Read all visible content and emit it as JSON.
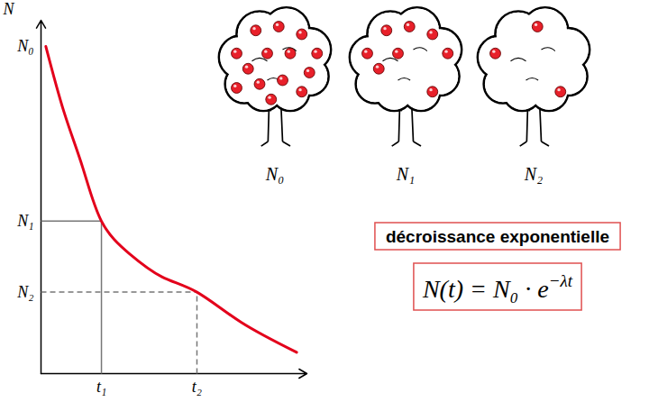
{
  "chart_data": {
    "type": "line",
    "ylabel": "N",
    "x": [
      0.08,
      0.38,
      0.69,
      1.0,
      1.46,
      2.0,
      2.58,
      3.31,
      4.23
    ],
    "values": [
      1.0,
      0.8,
      0.63,
      0.466,
      0.367,
      0.296,
      0.249,
      0.157,
      0.065
    ],
    "color": "#e3001b",
    "xlim": [
      0,
      4.4
    ],
    "ylim": [
      0,
      1.08
    ],
    "xticks": [
      {
        "value": 1.0,
        "label": "t₁"
      },
      {
        "value": 2.58,
        "label": "t₂"
      }
    ],
    "yticks": [
      {
        "value": 1.0,
        "label": "N₀"
      },
      {
        "value": 0.466,
        "label": "N₁"
      },
      {
        "value": 0.249,
        "label": "N₂"
      }
    ],
    "guides": [
      {
        "x": 1.0,
        "y": 0.466,
        "line_style": "solid"
      },
      {
        "x": 2.58,
        "y": 0.249,
        "line_style": "dashed"
      }
    ],
    "annotations": {
      "title_box": "décroissance exponentielle",
      "formula": {
        "text": "N(t) = N₀ · e",
        "exponent": "−λt"
      }
    },
    "trees": [
      {
        "label": "N₀",
        "apples": 14
      },
      {
        "label": "N₁",
        "apples": 8
      },
      {
        "label": "N₂",
        "apples": 3
      }
    ]
  }
}
